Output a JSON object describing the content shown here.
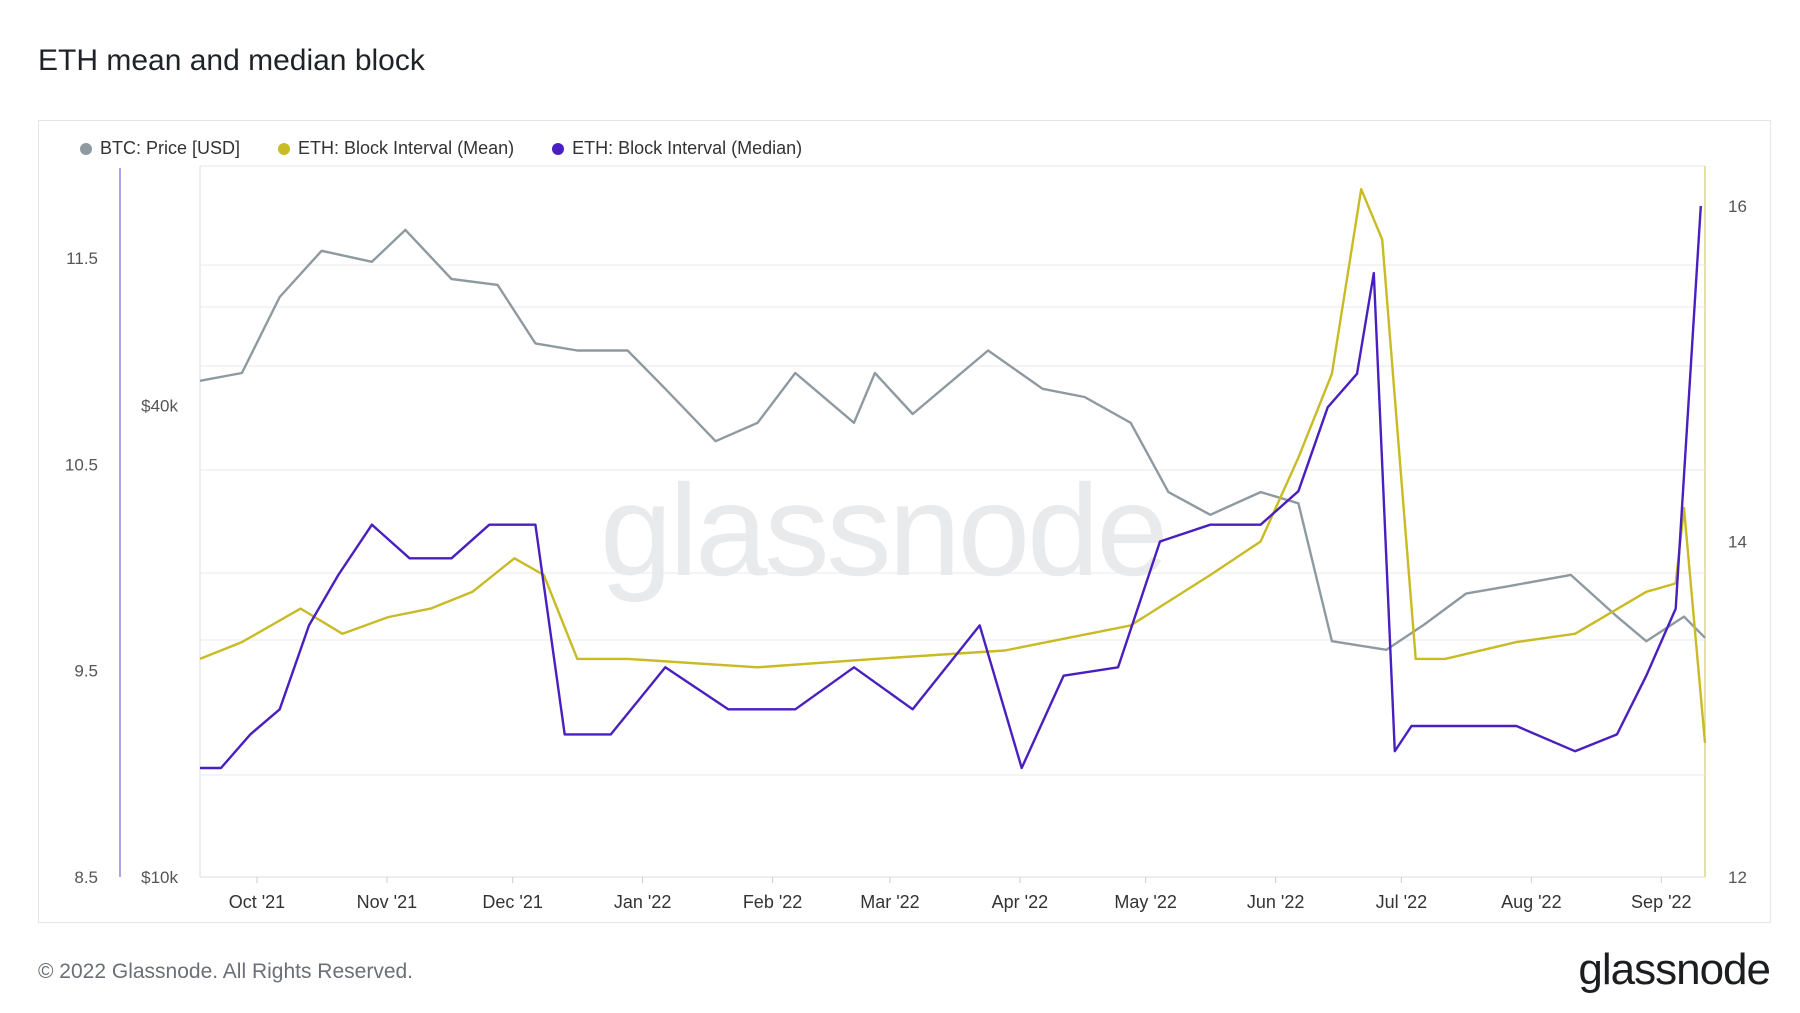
{
  "title": "ETH mean and median block",
  "footer": "© 2022 Glassnode. All Rights Reserved.",
  "logo": "glassnode",
  "watermark": "glassnode",
  "colors": {
    "price": "#8f9aa0",
    "mean": "#c8bb24",
    "median": "#4a1fbf",
    "grid": "#e8eaec"
  },
  "legend": [
    {
      "label": "BTC: Price [USD]",
      "color": "#8f9aa0"
    },
    {
      "label": "ETH: Block Interval (Mean)",
      "color": "#c8bb24"
    },
    {
      "label": "ETH: Block Interval (Median)",
      "color": "#4a1fbf"
    }
  ],
  "chart_data": {
    "type": "line",
    "x_tick_labels": [
      "Oct '21",
      "Nov '21",
      "Dec '21",
      "Jan '22",
      "Feb '22",
      "Mar '22",
      "Apr '22",
      "May '22",
      "Jun '22",
      "Jul '22",
      "Aug '22",
      "Sep '22"
    ],
    "x_range": [
      "2021-09-21",
      "2022-09-15"
    ],
    "y_left_outer": {
      "ticks": [
        "11.5",
        "10.5",
        "9.5",
        "8.5"
      ],
      "range": [
        8.5,
        11.5
      ]
    },
    "y_left_price": {
      "ticks": [
        "$40k",
        "$10k"
      ],
      "scale": "log"
    },
    "y_right": {
      "ticks": [
        "16",
        "14",
        "12"
      ],
      "range": [
        12,
        16
      ]
    },
    "series": [
      {
        "name": "BTC: Price [USD]",
        "axis": "price",
        "x": [
          "2021-09-21",
          "2021-10-01",
          "2021-10-10",
          "2021-10-20",
          "2021-11-01",
          "2021-11-09",
          "2021-11-20",
          "2021-12-01",
          "2021-12-10",
          "2021-12-20",
          "2022-01-01",
          "2022-01-10",
          "2022-01-22",
          "2022-02-01",
          "2022-02-10",
          "2022-02-24",
          "2022-03-01",
          "2022-03-10",
          "2022-03-28",
          "2022-04-10",
          "2022-04-20",
          "2022-05-01",
          "2022-05-10",
          "2022-05-20",
          "2022-06-01",
          "2022-06-10",
          "2022-06-18",
          "2022-07-01",
          "2022-07-10",
          "2022-07-20",
          "2022-07-30",
          "2022-08-14",
          "2022-08-25",
          "2022-09-01",
          "2022-09-10",
          "2022-09-15"
        ],
        "values": [
          43000,
          44000,
          55000,
          63000,
          61000,
          67000,
          58000,
          57000,
          48000,
          47000,
          47000,
          42000,
          36000,
          38000,
          44000,
          38000,
          44000,
          39000,
          47000,
          42000,
          41000,
          38000,
          31000,
          29000,
          31000,
          30000,
          20000,
          19500,
          21000,
          23000,
          23500,
          24300,
          21500,
          20000,
          21500,
          20200
        ]
      },
      {
        "name": "ETH: Block Interval (Mean)",
        "axis": "right",
        "x": [
          "2021-09-21",
          "2021-10-01",
          "2021-10-15",
          "2021-10-25",
          "2021-11-05",
          "2021-11-15",
          "2021-11-25",
          "2021-12-05",
          "2021-12-12",
          "2021-12-20",
          "2022-01-01",
          "2022-02-01",
          "2022-03-01",
          "2022-04-01",
          "2022-05-01",
          "2022-05-20",
          "2022-06-01",
          "2022-06-10",
          "2022-06-18",
          "2022-06-25",
          "2022-06-30",
          "2022-07-08",
          "2022-07-15",
          "2022-08-01",
          "2022-08-15",
          "2022-09-01",
          "2022-09-08",
          "2022-09-10",
          "2022-09-15"
        ],
        "values": [
          13.3,
          13.4,
          13.6,
          13.45,
          13.55,
          13.6,
          13.7,
          13.9,
          13.8,
          13.3,
          13.3,
          13.25,
          13.3,
          13.35,
          13.5,
          13.8,
          14.0,
          14.5,
          15.0,
          16.1,
          15.8,
          13.3,
          13.3,
          13.4,
          13.45,
          13.7,
          13.75,
          14.2,
          12.8
        ]
      },
      {
        "name": "ETH: Block Interval (Median)",
        "axis": "right",
        "x": [
          "2021-09-21",
          "2021-09-26",
          "2021-10-03",
          "2021-10-10",
          "2021-10-17",
          "2021-10-24",
          "2021-11-01",
          "2021-11-10",
          "2021-11-20",
          "2021-11-29",
          "2021-12-10",
          "2021-12-17",
          "2021-12-28",
          "2022-01-10",
          "2022-01-25",
          "2022-02-10",
          "2022-02-24",
          "2022-03-10",
          "2022-03-26",
          "2022-04-05",
          "2022-04-15",
          "2022-04-28",
          "2022-05-08",
          "2022-05-20",
          "2022-06-01",
          "2022-06-10",
          "2022-06-17",
          "2022-06-24",
          "2022-06-28",
          "2022-07-03",
          "2022-07-07",
          "2022-07-20",
          "2022-08-01",
          "2022-08-15",
          "2022-08-25",
          "2022-09-01",
          "2022-09-08",
          "2022-09-14"
        ],
        "values": [
          12.65,
          12.65,
          12.85,
          13.0,
          13.5,
          13.8,
          14.1,
          13.9,
          13.9,
          14.1,
          14.1,
          12.85,
          12.85,
          13.25,
          13.0,
          13.0,
          13.25,
          13.0,
          13.5,
          12.65,
          13.2,
          13.25,
          14.0,
          14.1,
          14.1,
          14.3,
          14.8,
          15.0,
          15.6,
          12.75,
          12.9,
          12.9,
          12.9,
          12.75,
          12.85,
          13.2,
          13.6,
          16.0
        ]
      }
    ]
  }
}
